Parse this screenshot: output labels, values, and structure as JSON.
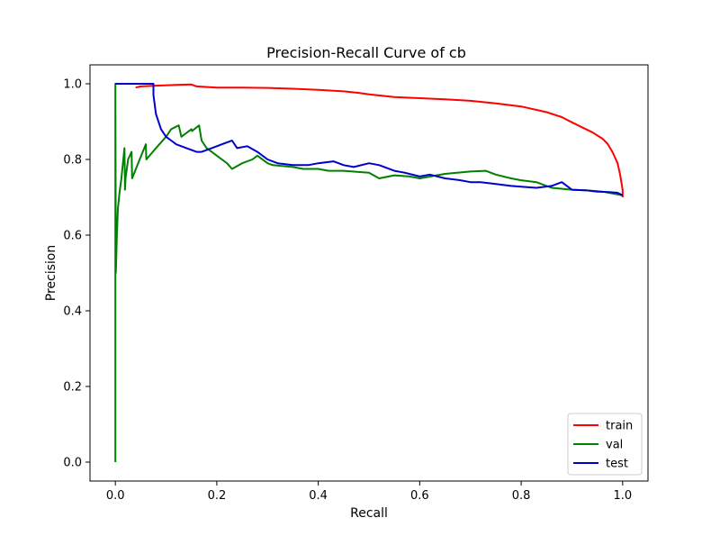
{
  "chart_data": {
    "type": "line",
    "title": "Precision-Recall Curve of cb",
    "xlabel": "Recall",
    "ylabel": "Precision",
    "xlim": [
      -0.05,
      1.05
    ],
    "ylim": [
      -0.05,
      1.05
    ],
    "xticks": [
      0.0,
      0.2,
      0.4,
      0.6,
      0.8,
      1.0
    ],
    "xtick_labels": [
      "0.0",
      "0.2",
      "0.4",
      "0.6",
      "0.8",
      "1.0"
    ],
    "yticks": [
      0.0,
      0.2,
      0.4,
      0.6,
      0.8,
      1.0
    ],
    "ytick_labels": [
      "0.0",
      "0.2",
      "0.4",
      "0.6",
      "0.8",
      "1.0"
    ],
    "grid": false,
    "legend_position": "lower-right",
    "series": [
      {
        "name": "train",
        "color": "#ff0000",
        "x": [
          0.04,
          0.05,
          0.08,
          0.12,
          0.15,
          0.16,
          0.2,
          0.25,
          0.3,
          0.35,
          0.4,
          0.45,
          0.48,
          0.5,
          0.55,
          0.6,
          0.65,
          0.7,
          0.75,
          0.8,
          0.85,
          0.88,
          0.9,
          0.92,
          0.94,
          0.96,
          0.97,
          0.98,
          0.99,
          0.995,
          1.0,
          1.0
        ],
        "y": [
          0.99,
          0.993,
          0.995,
          0.997,
          0.998,
          0.993,
          0.99,
          0.99,
          0.989,
          0.987,
          0.984,
          0.98,
          0.976,
          0.972,
          0.965,
          0.962,
          0.959,
          0.955,
          0.948,
          0.94,
          0.925,
          0.912,
          0.898,
          0.885,
          0.872,
          0.855,
          0.842,
          0.82,
          0.79,
          0.76,
          0.72,
          0.7
        ]
      },
      {
        "name": "val",
        "color": "#008000",
        "x": [
          0.0,
          0.0,
          0.001,
          0.003,
          0.005,
          0.008,
          0.012,
          0.018,
          0.019,
          0.02,
          0.025,
          0.032,
          0.033,
          0.045,
          0.06,
          0.061,
          0.08,
          0.1,
          0.11,
          0.125,
          0.13,
          0.15,
          0.151,
          0.165,
          0.17,
          0.18,
          0.2,
          0.21,
          0.22,
          0.23,
          0.25,
          0.27,
          0.28,
          0.3,
          0.31,
          0.35,
          0.37,
          0.4,
          0.42,
          0.45,
          0.5,
          0.52,
          0.55,
          0.58,
          0.6,
          0.65,
          0.7,
          0.73,
          0.75,
          0.78,
          0.8,
          0.83,
          0.86,
          0.9,
          0.93,
          0.96,
          0.98,
          1.0
        ],
        "y": [
          0.0,
          1.0,
          0.5,
          0.6,
          0.67,
          0.71,
          0.75,
          0.83,
          0.72,
          0.75,
          0.8,
          0.82,
          0.75,
          0.79,
          0.84,
          0.8,
          0.83,
          0.86,
          0.88,
          0.89,
          0.86,
          0.88,
          0.875,
          0.89,
          0.85,
          0.83,
          0.81,
          0.8,
          0.79,
          0.775,
          0.79,
          0.8,
          0.81,
          0.79,
          0.785,
          0.78,
          0.775,
          0.775,
          0.77,
          0.77,
          0.765,
          0.75,
          0.758,
          0.755,
          0.75,
          0.762,
          0.768,
          0.77,
          0.76,
          0.75,
          0.745,
          0.74,
          0.725,
          0.72,
          0.718,
          0.715,
          0.71,
          0.705
        ]
      },
      {
        "name": "test",
        "color": "#0000cc",
        "x": [
          0.0,
          0.075,
          0.075,
          0.08,
          0.09,
          0.1,
          0.11,
          0.12,
          0.14,
          0.16,
          0.17,
          0.19,
          0.21,
          0.23,
          0.24,
          0.26,
          0.28,
          0.3,
          0.32,
          0.35,
          0.38,
          0.4,
          0.43,
          0.45,
          0.47,
          0.5,
          0.52,
          0.55,
          0.57,
          0.6,
          0.62,
          0.65,
          0.68,
          0.7,
          0.72,
          0.75,
          0.78,
          0.8,
          0.83,
          0.86,
          0.88,
          0.9,
          0.93,
          0.95,
          0.97,
          0.99,
          1.0
        ],
        "y": [
          1.0,
          1.0,
          0.97,
          0.92,
          0.88,
          0.86,
          0.85,
          0.84,
          0.83,
          0.82,
          0.82,
          0.83,
          0.84,
          0.85,
          0.83,
          0.835,
          0.82,
          0.8,
          0.79,
          0.785,
          0.785,
          0.79,
          0.795,
          0.785,
          0.78,
          0.79,
          0.785,
          0.77,
          0.765,
          0.755,
          0.76,
          0.75,
          0.745,
          0.74,
          0.74,
          0.735,
          0.73,
          0.728,
          0.725,
          0.73,
          0.74,
          0.72,
          0.718,
          0.715,
          0.714,
          0.712,
          0.705
        ]
      }
    ]
  }
}
